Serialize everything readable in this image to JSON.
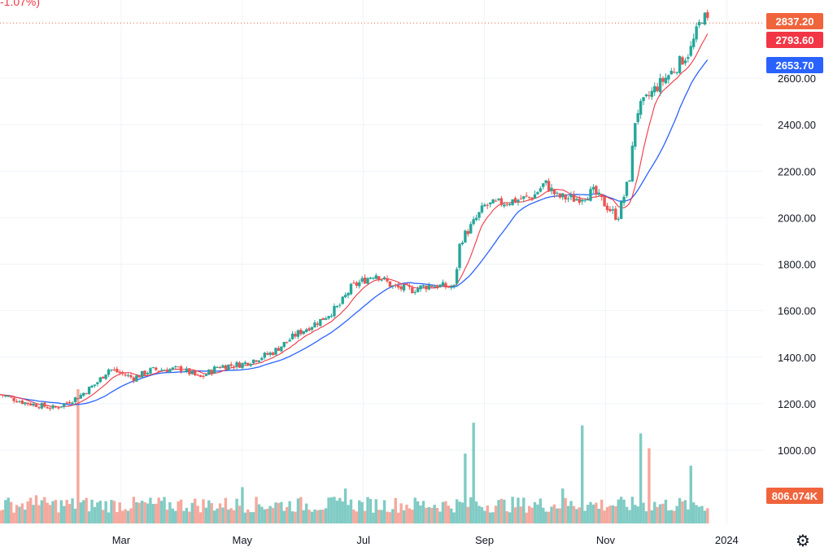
{
  "header": {
    "change_text": "-1.07%)"
  },
  "chart_data": {
    "type": "candlestick",
    "title": "",
    "xlabel": "",
    "ylabel": "",
    "x_tick_labels": [
      "Mar",
      "May",
      "Jul",
      "Sep",
      "Nov",
      "2024"
    ],
    "x_tick_months": [
      2,
      4,
      6,
      8,
      10,
      12
    ],
    "y_tick_values": [
      1000,
      1200,
      1400,
      1600,
      1800,
      2000,
      2200,
      2400,
      2600
    ],
    "y_tick_labels": [
      "1000.00",
      "1200.00",
      "1400.00",
      "1600.00",
      "1800.00",
      "2000.00",
      "2200.00",
      "2400.00",
      "2600.00"
    ],
    "ylim": [
      900,
      2900
    ],
    "x_range_months": [
      0,
      12.6
    ],
    "last_date_month": 10.8,
    "grid": true,
    "colors": {
      "up": "#26a69a",
      "down": "#ef5350",
      "ma_fast": "#f23645",
      "ma_slow": "#2962ff",
      "volume_up": "#80cbc4",
      "volume_down": "#f5a89d",
      "grid": "#f0f3fa"
    },
    "price_path": [
      {
        "m": 0.0,
        "c": 1240
      },
      {
        "m": 0.4,
        "c": 1205
      },
      {
        "m": 0.9,
        "c": 1180
      },
      {
        "m": 1.3,
        "c": 1230
      },
      {
        "m": 1.6,
        "c": 1290
      },
      {
        "m": 1.8,
        "c": 1350
      },
      {
        "m": 2.2,
        "c": 1310
      },
      {
        "m": 2.5,
        "c": 1345
      },
      {
        "m": 3.0,
        "c": 1350
      },
      {
        "m": 3.3,
        "c": 1310
      },
      {
        "m": 3.6,
        "c": 1360
      },
      {
        "m": 4.0,
        "c": 1370
      },
      {
        "m": 4.5,
        "c": 1420
      },
      {
        "m": 4.9,
        "c": 1500
      },
      {
        "m": 5.3,
        "c": 1560
      },
      {
        "m": 5.6,
        "c": 1620
      },
      {
        "m": 5.8,
        "c": 1700
      },
      {
        "m": 6.2,
        "c": 1760
      },
      {
        "m": 6.5,
        "c": 1700
      },
      {
        "m": 6.8,
        "c": 1690
      },
      {
        "m": 7.1,
        "c": 1710
      },
      {
        "m": 7.5,
        "c": 1700
      },
      {
        "m": 7.6,
        "c": 1900
      },
      {
        "m": 7.8,
        "c": 1970
      },
      {
        "m": 8.0,
        "c": 2050
      },
      {
        "m": 8.4,
        "c": 2070
      },
      {
        "m": 8.8,
        "c": 2090
      },
      {
        "m": 9.0,
        "c": 2150
      },
      {
        "m": 9.2,
        "c": 2090
      },
      {
        "m": 9.5,
        "c": 2080
      },
      {
        "m": 9.8,
        "c": 2110
      },
      {
        "m": 10.2,
        "c": 2000
      },
      {
        "m": 10.4,
        "c": 2180
      },
      {
        "m": 10.5,
        "c": 2450
      },
      {
        "m": 10.8,
        "c": 2550
      },
      {
        "m": 11.1,
        "c": 2630
      },
      {
        "m": 11.4,
        "c": 2720
      },
      {
        "m": 11.6,
        "c": 2870
      },
      {
        "m": 11.7,
        "c": 2837
      }
    ],
    "volume_spikes": [
      {
        "m": 1.3,
        "v": 1.0,
        "up": true
      },
      {
        "m": 7.7,
        "v": 0.52,
        "up": true
      },
      {
        "m": 7.8,
        "v": 0.75,
        "up": true
      },
      {
        "m": 9.6,
        "v": 0.73,
        "up": false
      },
      {
        "m": 10.6,
        "v": 0.67,
        "up": true
      },
      {
        "m": 10.7,
        "v": 0.56,
        "up": true
      },
      {
        "m": 11.4,
        "v": 0.43,
        "up": true
      },
      {
        "m": 4.0,
        "v": 0.27,
        "up": false
      },
      {
        "m": 5.7,
        "v": 0.26,
        "up": true
      },
      {
        "m": 9.3,
        "v": 0.26,
        "up": true
      },
      {
        "m": 0.6,
        "v": 0.21,
        "up": true
      }
    ],
    "price_badges": [
      {
        "label": "2837.20",
        "value": 2837.2,
        "color": "#f0643c"
      },
      {
        "label": "2793.60",
        "value": 2793.6,
        "color": "#f23645"
      },
      {
        "label": "2653.70",
        "value": 2653.7,
        "color": "#2962ff"
      }
    ],
    "volume_badge": {
      "label": "806.074K",
      "color": "#f0643c"
    }
  }
}
